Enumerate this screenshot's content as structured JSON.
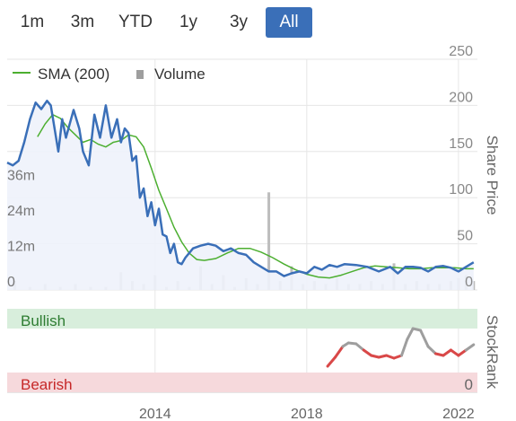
{
  "range_buttons": [
    "1m",
    "3m",
    "YTD",
    "1y",
    "3y",
    "All"
  ],
  "active_range": "All",
  "legend": {
    "sma_label": "SMA (200)",
    "volume_label": "Volume"
  },
  "colors": {
    "price": "#3a6fb8",
    "sma": "#4caf30",
    "volume": "#bdbdbd",
    "bullish_bg": "#d8eedc",
    "bearish_bg": "#f6d9dc",
    "rank_gray": "#9e9e9e",
    "rank_red": "#d94848",
    "active_button": "#3a6fb8",
    "area_fill": "#eef2fb"
  },
  "stockrank": {
    "title": "StockRank",
    "bullish_label": "Bullish",
    "bearish_label": "Bearish",
    "zero_label": "0"
  },
  "chart_data": {
    "type": "line",
    "ylabel": "Share Price",
    "price_ticks": [
      250,
      200,
      150,
      100,
      50,
      0
    ],
    "price_ylim": [
      0,
      250
    ],
    "volume_ticks": [
      "36m",
      "24m",
      "12m",
      "0"
    ],
    "volume_tick_values": [
      36,
      24,
      12,
      0
    ],
    "volume_ylim": [
      0,
      78
    ],
    "x_ticks": [
      "2014",
      "2018",
      "2022"
    ],
    "x_tick_values": [
      2014,
      2018,
      2022
    ],
    "xlim": [
      2010.1,
      2022.5
    ],
    "grid": true,
    "series": [
      {
        "name": "Share Price",
        "x": [
          2010.1,
          2010.25,
          2010.4,
          2010.55,
          2010.7,
          2010.85,
          2011.0,
          2011.15,
          2011.25,
          2011.35,
          2011.45,
          2011.55,
          2011.65,
          2011.75,
          2011.85,
          2012.0,
          2012.1,
          2012.25,
          2012.4,
          2012.55,
          2012.7,
          2012.85,
          2013.0,
          2013.1,
          2013.2,
          2013.3,
          2013.4,
          2013.5,
          2013.6,
          2013.7,
          2013.8,
          2013.9,
          2014.0,
          2014.1,
          2014.2,
          2014.3,
          2014.4,
          2014.5,
          2014.6,
          2014.7,
          2014.8,
          2014.9,
          2015.0,
          2015.2,
          2015.4,
          2015.6,
          2015.8,
          2016.0,
          2016.2,
          2016.4,
          2016.6,
          2016.8,
          2017.0,
          2017.2,
          2017.4,
          2017.6,
          2017.8,
          2018.0,
          2018.2,
          2018.4,
          2018.6,
          2018.8,
          2019.0,
          2019.3,
          2019.6,
          2019.9,
          2020.2,
          2020.4,
          2020.6,
          2020.8,
          2021.0,
          2021.2,
          2021.4,
          2021.6,
          2021.8,
          2022.0,
          2022.2,
          2022.4
        ],
        "y": [
          138,
          135,
          140,
          160,
          185,
          203,
          196,
          205,
          200,
          175,
          150,
          185,
          165,
          180,
          195,
          175,
          150,
          135,
          190,
          165,
          200,
          165,
          185,
          160,
          175,
          170,
          140,
          145,
          100,
          110,
          80,
          95,
          70,
          88,
          60,
          58,
          40,
          50,
          30,
          28,
          35,
          40,
          45,
          48,
          50,
          48,
          42,
          45,
          40,
          38,
          30,
          25,
          20,
          20,
          15,
          18,
          20,
          18,
          25,
          22,
          27,
          25,
          28,
          27,
          25,
          20,
          25,
          18,
          25,
          25,
          24,
          20,
          25,
          26,
          24,
          20,
          25,
          30
        ]
      },
      {
        "name": "SMA (200)",
        "x": [
          2010.9,
          2011.1,
          2011.3,
          2011.5,
          2011.7,
          2011.9,
          2012.1,
          2012.3,
          2012.5,
          2012.7,
          2012.9,
          2013.1,
          2013.3,
          2013.5,
          2013.7,
          2013.9,
          2014.1,
          2014.3,
          2014.5,
          2014.7,
          2014.9,
          2015.1,
          2015.3,
          2015.6,
          2015.9,
          2016.2,
          2016.5,
          2016.8,
          2017.1,
          2017.4,
          2017.7,
          2018.0,
          2018.3,
          2018.6,
          2018.9,
          2019.2,
          2019.5,
          2019.8,
          2020.1,
          2020.4,
          2020.7,
          2021.0,
          2021.3,
          2021.6,
          2021.9,
          2022.2,
          2022.4
        ],
        "y": [
          166,
          180,
          190,
          186,
          176,
          168,
          160,
          163,
          158,
          155,
          160,
          162,
          168,
          166,
          155,
          132,
          108,
          88,
          68,
          52,
          40,
          33,
          32,
          34,
          40,
          45,
          45,
          41,
          35,
          28,
          22,
          17,
          14,
          13,
          16,
          20,
          24,
          26,
          25,
          24,
          23,
          23,
          24,
          24,
          24,
          23,
          23
        ]
      },
      {
        "name": "Volume",
        "x": [
          2010.3,
          2010.7,
          2011.1,
          2011.5,
          2011.9,
          2012.3,
          2012.7,
          2013.1,
          2013.4,
          2013.7,
          2014.0,
          2014.3,
          2014.6,
          2014.9,
          2015.2,
          2015.5,
          2015.8,
          2016.1,
          2016.4,
          2016.7,
          2017.0,
          2017.3,
          2017.6,
          2017.9,
          2018.2,
          2018.5,
          2018.8,
          2019.1,
          2019.4,
          2019.7,
          2020.0,
          2020.3,
          2020.6,
          2020.9,
          2021.2,
          2021.5,
          2021.8,
          2022.0,
          2022.2,
          2022.4
        ],
        "y": [
          3,
          1,
          2,
          1,
          2,
          1,
          1,
          6,
          3,
          2,
          5,
          1,
          3,
          1,
          8,
          2,
          5,
          1,
          4,
          2,
          33,
          3,
          8,
          2,
          3,
          2,
          4,
          2,
          2,
          3,
          2,
          9,
          2,
          3,
          2,
          2,
          3,
          4,
          5,
          3
        ]
      }
    ],
    "stockrank_series": {
      "x": [
        2018.55,
        2018.75,
        2018.95,
        2019.1,
        2019.3,
        2019.5,
        2019.7,
        2019.9,
        2020.1,
        2020.3,
        2020.5,
        2020.65,
        2020.8,
        2021.0,
        2021.2,
        2021.4,
        2021.6,
        2021.8,
        2022.0,
        2022.2,
        2022.4
      ],
      "y": [
        8,
        18,
        30,
        34,
        33,
        26,
        20,
        18,
        20,
        17,
        20,
        38,
        50,
        48,
        30,
        22,
        20,
        26,
        20,
        26,
        32
      ],
      "gray_above": 25
    }
  }
}
